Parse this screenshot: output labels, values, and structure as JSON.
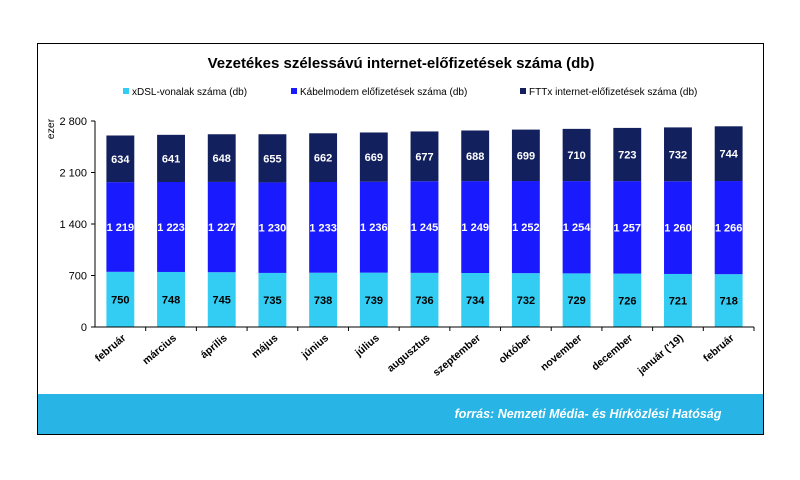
{
  "chart_data": {
    "type": "bar",
    "stacked": true,
    "title": "Vezetékes szélessávú internet-előfizetések száma (db)",
    "ylabel": "ezer",
    "ylim": [
      0,
      2800
    ],
    "yticks": [
      0,
      700,
      1400,
      2100,
      2800
    ],
    "ytick_labels": [
      "0",
      "700",
      "1 400",
      "2 100",
      "2 800"
    ],
    "categories": [
      "február",
      "március",
      "április",
      "május",
      "június",
      "július",
      "augusztus",
      "szeptember",
      "október",
      "november",
      "december",
      "január ('19)",
      "február"
    ],
    "series": [
      {
        "name": "xDSL-vonalak száma (db)",
        "color": "#33ccf2",
        "label_color": "#000000",
        "values": [
          750,
          748,
          745,
          735,
          738,
          739,
          736,
          734,
          732,
          729,
          726,
          721,
          718
        ],
        "labels": [
          "750",
          "748",
          "745",
          "735",
          "738",
          "739",
          "736",
          "734",
          "732",
          "729",
          "726",
          "721",
          "718"
        ]
      },
      {
        "name": "Kábelmodem előfizetések száma (db)",
        "color": "#1a1aff",
        "label_color": "#ffffff",
        "values": [
          1219,
          1223,
          1227,
          1230,
          1233,
          1236,
          1245,
          1249,
          1252,
          1254,
          1257,
          1260,
          1266
        ],
        "labels": [
          "1 219",
          "1 223",
          "1 227",
          "1 230",
          "1 233",
          "1 236",
          "1 245",
          "1 249",
          "1 252",
          "1 254",
          "1 257",
          "1 260",
          "1 266"
        ]
      },
      {
        "name": "FTTx  internet-előfizetések száma (db)",
        "color": "#13205e",
        "label_color": "#ffffff",
        "values": [
          634,
          641,
          648,
          655,
          662,
          669,
          677,
          688,
          699,
          710,
          723,
          732,
          744
        ],
        "labels": [
          "634",
          "641",
          "648",
          "655",
          "662",
          "669",
          "677",
          "688",
          "699",
          "710",
          "723",
          "732",
          "744"
        ]
      }
    ],
    "legend_position": "top",
    "grid": false
  },
  "footer": {
    "source": "forrás: Nemzeti Média- és Hírközlési Hatóság",
    "band_color": "#29b4e6"
  }
}
